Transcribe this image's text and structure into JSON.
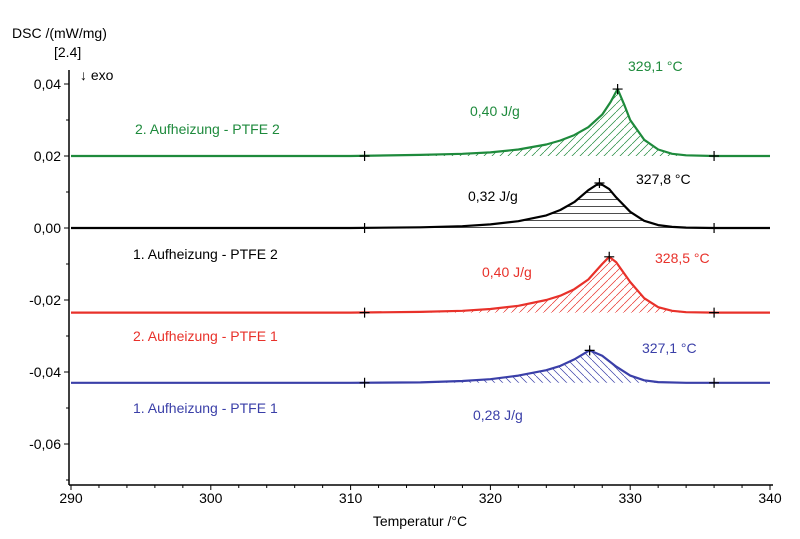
{
  "chart_data": {
    "type": "line",
    "xlabel": "Temperatur /°C",
    "ylabel": "DSC /(mW/mg)",
    "ylabel_sub": "[2.4]",
    "direction_note": "↓ exo",
    "xlim": [
      290,
      340
    ],
    "ylim": [
      -0.0714,
      0.0439
    ],
    "xticks": [
      290,
      300,
      310,
      320,
      330,
      340
    ],
    "xtick_labels": [
      "290",
      "300",
      "310",
      "320",
      "330",
      "340"
    ],
    "yticks": [
      0.04,
      0.02,
      0.0,
      -0.02,
      -0.04,
      -0.06
    ],
    "ytick_labels": [
      "0,04",
      "0,02",
      "0,00",
      "-0,02",
      "-0,04",
      "-0,06"
    ],
    "grid": false,
    "integration_limits": [
      311,
      336
    ],
    "series": [
      {
        "name": "2. Aufheizung - PTFE 2",
        "color": "#1e8a3c",
        "hatch": "diagonal-up",
        "baseline": 0.02,
        "peak_temp": 329.1,
        "peak_label": "329,1 °C",
        "enthalpy_label": "0,40 J/g",
        "points": [
          [
            290,
            0.02
          ],
          [
            310,
            0.02
          ],
          [
            315,
            0.0203
          ],
          [
            318,
            0.0206
          ],
          [
            320,
            0.021
          ],
          [
            322,
            0.0218
          ],
          [
            324,
            0.0232
          ],
          [
            325,
            0.0243
          ],
          [
            326,
            0.0258
          ],
          [
            327,
            0.028
          ],
          [
            328,
            0.0315
          ],
          [
            328.6,
            0.035
          ],
          [
            329.1,
            0.0386
          ],
          [
            329.6,
            0.034
          ],
          [
            330,
            0.03
          ],
          [
            331,
            0.0245
          ],
          [
            332,
            0.0218
          ],
          [
            333,
            0.0206
          ],
          [
            334,
            0.0202
          ],
          [
            336,
            0.02
          ],
          [
            340,
            0.02
          ]
        ]
      },
      {
        "name": "1. Aufheizung - PTFE 2",
        "color": "#000000",
        "hatch": "horizontal",
        "baseline": 0.0,
        "peak_temp": 327.8,
        "peak_label": "327,8 °C",
        "enthalpy_label": "0,32 J/g",
        "points": [
          [
            290,
            0
          ],
          [
            310,
            0
          ],
          [
            315,
            0.0002
          ],
          [
            318,
            0.0005
          ],
          [
            320,
            0.001
          ],
          [
            322,
            0.0019
          ],
          [
            324,
            0.0035
          ],
          [
            325,
            0.005
          ],
          [
            326,
            0.0072
          ],
          [
            327,
            0.0105
          ],
          [
            327.8,
            0.0125
          ],
          [
            328.5,
            0.0108
          ],
          [
            329,
            0.0085
          ],
          [
            330,
            0.0045
          ],
          [
            331,
            0.002
          ],
          [
            332,
            0.0008
          ],
          [
            333,
            0.0003
          ],
          [
            334,
            0.0001
          ],
          [
            336,
            0
          ],
          [
            340,
            0
          ]
        ]
      },
      {
        "name": "2. Aufheizung - PTFE 1",
        "color": "#e8312a",
        "hatch": "diagonal-up",
        "baseline": -0.0235,
        "peak_temp": 328.5,
        "peak_label": "328,5 °C",
        "enthalpy_label": "0,40 J/g",
        "points": [
          [
            290,
            -0.0235
          ],
          [
            310,
            -0.0235
          ],
          [
            315,
            -0.0233
          ],
          [
            318,
            -0.023
          ],
          [
            320,
            -0.0225
          ],
          [
            322,
            -0.0216
          ],
          [
            324,
            -0.02
          ],
          [
            325,
            -0.0188
          ],
          [
            326,
            -0.017
          ],
          [
            327,
            -0.0143
          ],
          [
            328,
            -0.01
          ],
          [
            328.5,
            -0.008
          ],
          [
            329,
            -0.0095
          ],
          [
            330,
            -0.015
          ],
          [
            331,
            -0.0195
          ],
          [
            332,
            -0.022
          ],
          [
            333,
            -0.023
          ],
          [
            334,
            -0.0234
          ],
          [
            336,
            -0.0235
          ],
          [
            340,
            -0.0235
          ]
        ]
      },
      {
        "name": "1. Aufheizung - PTFE 1",
        "color": "#3a3fa8",
        "hatch": "diagonal-down",
        "baseline": -0.043,
        "peak_temp": 327.1,
        "peak_label": "327,1 °C",
        "enthalpy_label": "0,28 J/g",
        "points": [
          [
            290,
            -0.043
          ],
          [
            310,
            -0.043
          ],
          [
            315,
            -0.0429
          ],
          [
            318,
            -0.0425
          ],
          [
            320,
            -0.042
          ],
          [
            322,
            -0.041
          ],
          [
            324,
            -0.0395
          ],
          [
            325,
            -0.0383
          ],
          [
            326,
            -0.0365
          ],
          [
            327,
            -0.0342
          ],
          [
            327.1,
            -0.034
          ],
          [
            328,
            -0.0355
          ],
          [
            329,
            -0.0385
          ],
          [
            330,
            -0.041
          ],
          [
            331,
            -0.0423
          ],
          [
            332,
            -0.0428
          ],
          [
            334,
            -0.043
          ],
          [
            336,
            -0.043
          ],
          [
            340,
            -0.043
          ]
        ]
      }
    ]
  }
}
